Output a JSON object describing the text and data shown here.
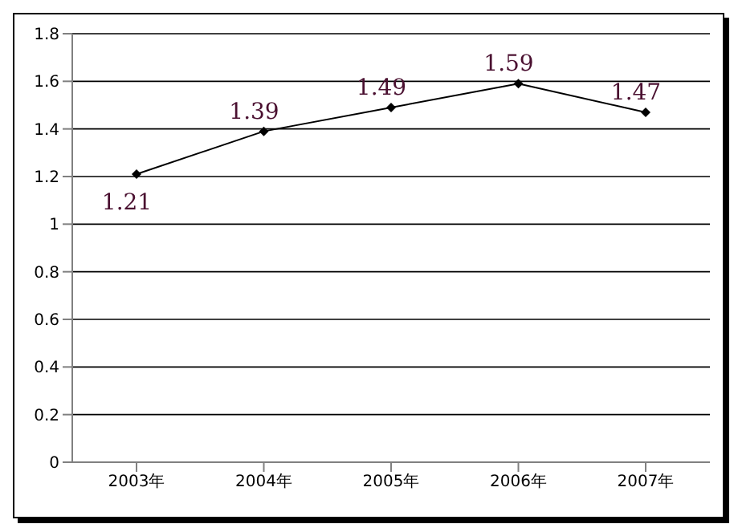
{
  "chart_data": {
    "type": "line",
    "categories": [
      "2003年",
      "2004年",
      "2005年",
      "2006年",
      "2007年"
    ],
    "series": [
      {
        "color": "#000000",
        "values": [
          1.21,
          1.39,
          1.49,
          1.59,
          1.47
        ]
      }
    ],
    "ylim": [
      0,
      1.8
    ],
    "yticks": [
      0,
      0.2,
      0.4,
      0.6,
      0.8,
      1,
      1.2,
      1.4,
      1.6,
      1.8
    ],
    "grid": "y",
    "marker": "diamond",
    "line_style": "solid",
    "data_labels": true
  }
}
